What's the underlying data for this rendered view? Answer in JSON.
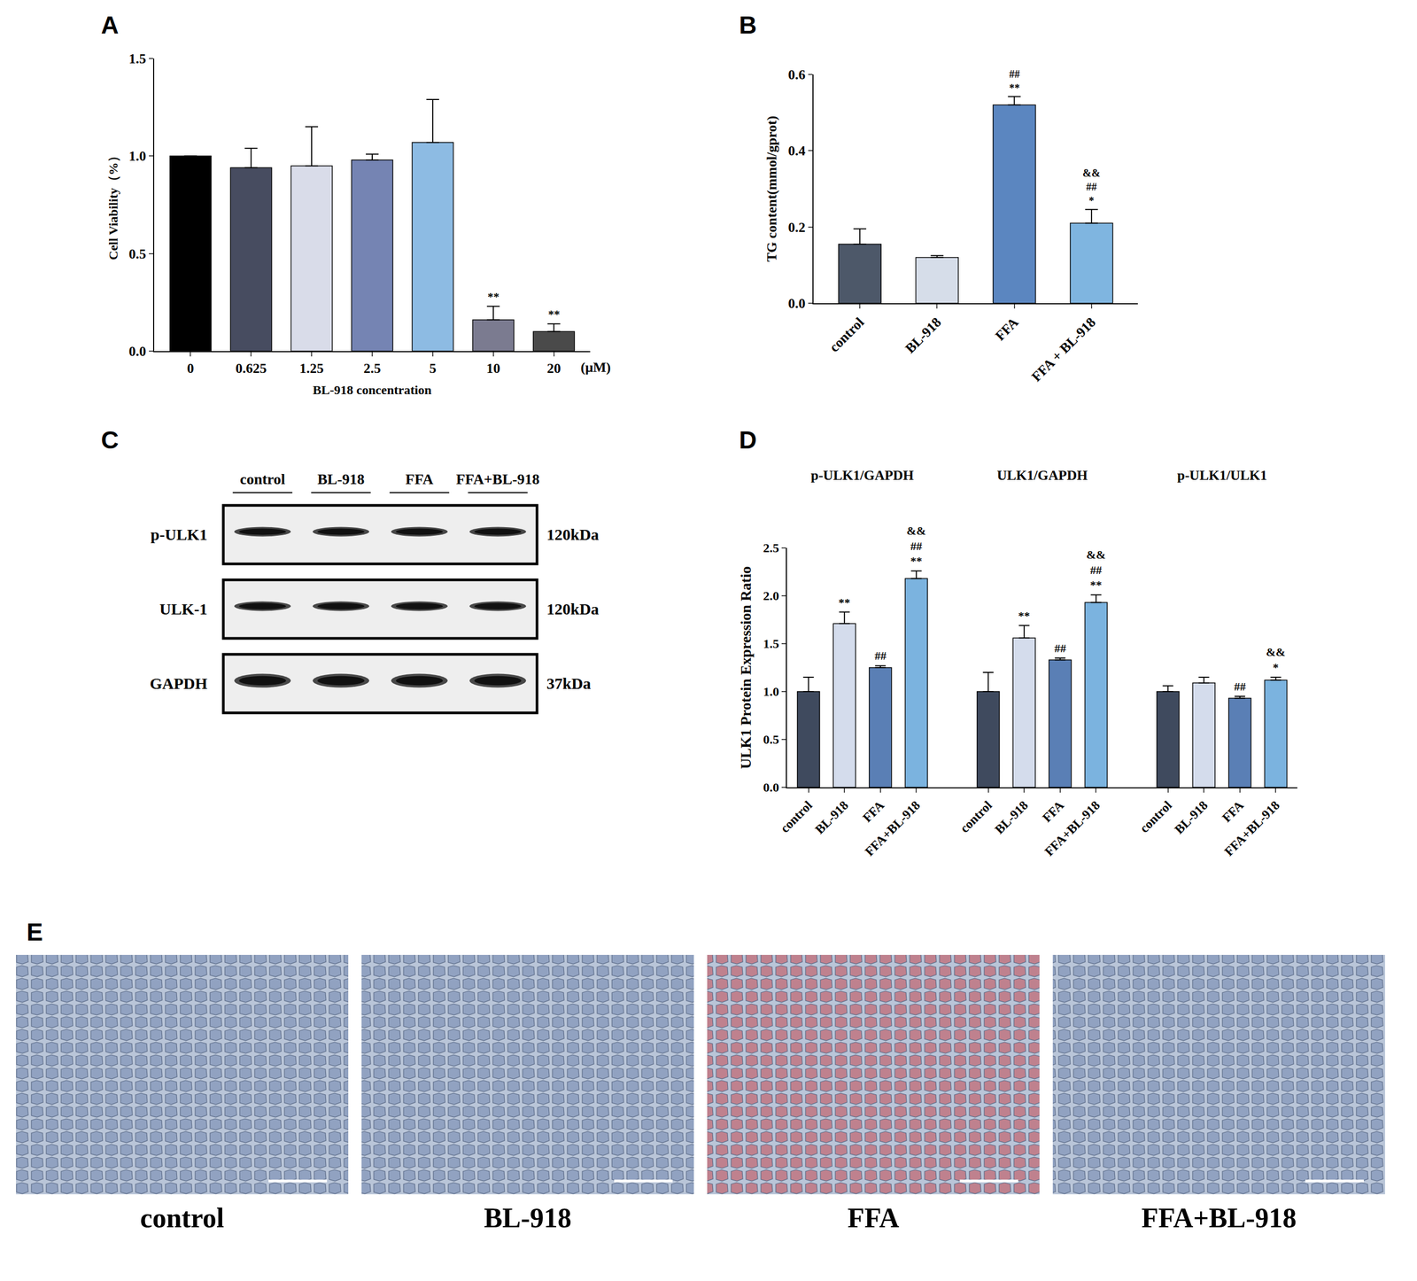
{
  "chart_data": [
    {
      "panel": "A",
      "type": "bar",
      "x_label": "BL-918 concentration",
      "y_label": "Cell Viability（%）",
      "categories": [
        "0",
        "0.625",
        "1.25",
        "2.5",
        "5",
        "10",
        "20"
      ],
      "values": [
        1.0,
        0.94,
        0.95,
        0.98,
        1.07,
        0.16,
        0.1
      ],
      "errors": [
        0,
        0.1,
        0.2,
        0.03,
        0.22,
        0.07,
        0.04
      ],
      "marks": [
        null,
        null,
        null,
        null,
        null,
        [
          "**"
        ],
        [
          "**"
        ]
      ],
      "colors": [
        "#000000",
        "#474c60",
        "#d9dce9",
        "#7584b3",
        "#8dbbe3",
        "#7b7b90",
        "#4a4a4a"
      ],
      "annotations": [
        "(μM)"
      ],
      "ylim": [
        0,
        1.5
      ],
      "yticks": [
        {
          "value": 0,
          "label": "0.0"
        },
        {
          "value": 0.5,
          "label": "0.5"
        },
        {
          "value": 1,
          "label": "1.0"
        },
        {
          "value": 1.5,
          "label": "1.5"
        }
      ],
      "grid": false
    },
    {
      "panel": "B",
      "type": "bar",
      "y_label": "TG content(mmol/gprot)",
      "categories": [
        "control",
        "BL-918",
        "FFA",
        "FFA + BL-918"
      ],
      "values": [
        0.155,
        0.12,
        0.52,
        0.21
      ],
      "errors": [
        0.04,
        0.005,
        0.022,
        0.036
      ],
      "marks": [
        null,
        null,
        [
          "##",
          "**"
        ],
        [
          "&&",
          "##",
          "*"
        ]
      ],
      "colors": [
        "#4d5869",
        "#d6dde9",
        "#5b86c0",
        "#7fb5e0"
      ],
      "ylim": [
        0,
        0.6
      ],
      "yticks": [
        {
          "value": 0,
          "label": "0.0"
        },
        {
          "value": 0.2,
          "label": "0.2"
        },
        {
          "value": 0.4,
          "label": "0.4"
        },
        {
          "value": 0.6,
          "label": "0.6"
        }
      ],
      "grid": false
    },
    {
      "panel": "D",
      "type": "bar",
      "y_label": "ULK1 Protein Expression Ratio",
      "categories": [
        "control",
        "BL-918",
        "FFA",
        "FFA+BL-918"
      ],
      "groups": [
        {
          "name": "p-ULK1/GAPDH",
          "values": [
            1.0,
            1.71,
            1.25,
            2.18
          ],
          "errors": [
            0.15,
            0.12,
            0.02,
            0.08
          ],
          "marks": [
            null,
            [
              "**"
            ],
            [
              "##"
            ],
            [
              "&&",
              "##",
              "**"
            ]
          ]
        },
        {
          "name": "ULK1/GAPDH",
          "values": [
            1.0,
            1.56,
            1.33,
            1.93
          ],
          "errors": [
            0.2,
            0.13,
            0.02,
            0.08
          ],
          "marks": [
            null,
            [
              "**"
            ],
            [
              "##"
            ],
            [
              "&&",
              "##",
              "**"
            ]
          ]
        },
        {
          "name": "p-ULK1/ULK1",
          "values": [
            1.0,
            1.09,
            0.93,
            1.12
          ],
          "errors": [
            0.06,
            0.06,
            0.02,
            0.03
          ],
          "marks": [
            null,
            null,
            [
              "##"
            ],
            [
              "&&",
              "*"
            ]
          ]
        }
      ],
      "colors": [
        "#3f4a5e",
        "#d4dcec",
        "#5a7fb5",
        "#7bb3df"
      ],
      "ylim": [
        0,
        2.5
      ],
      "yticks": [
        {
          "value": 0,
          "label": "0.0"
        },
        {
          "value": 0.5,
          "label": "0.5"
        },
        {
          "value": 1,
          "label": "1.0"
        },
        {
          "value": 1.5,
          "label": "1.5"
        },
        {
          "value": 2,
          "label": "2.0"
        },
        {
          "value": 2.5,
          "label": "2.5"
        }
      ],
      "grid": false
    }
  ],
  "blot": {
    "panel": "C",
    "lanes": [
      "control",
      "BL-918",
      "FFA",
      "FFA+BL-918"
    ],
    "rows": [
      {
        "label": "p-ULK1",
        "size": "120kDa"
      },
      {
        "label": "ULK-1",
        "size": "120kDa"
      },
      {
        "label": "GAPDH",
        "size": "37kDa"
      }
    ]
  },
  "micrographs": {
    "panel": "E",
    "labels": [
      "control",
      "BL-918",
      "FFA",
      "FFA+BL-918"
    ],
    "colors": [
      "#8d9fbf",
      "#8d9fbf",
      "#c07a86",
      "#8d9fbf"
    ]
  }
}
